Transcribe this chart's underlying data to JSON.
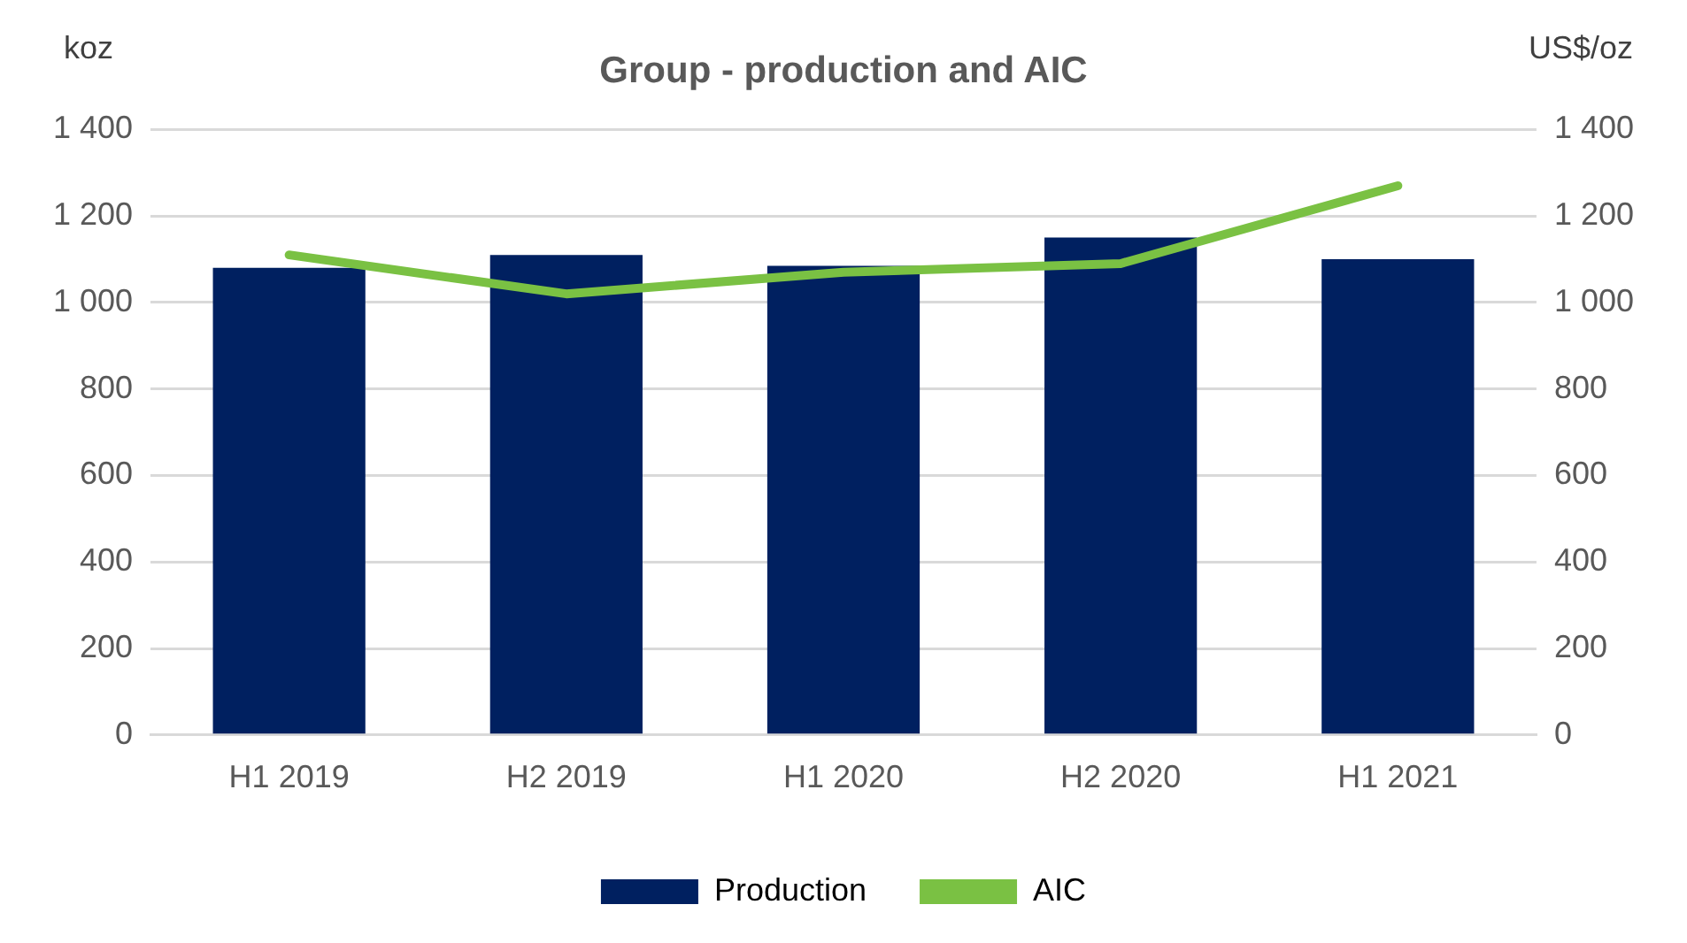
{
  "chart_data": {
    "type": "bar",
    "title": "Group - production and AIC",
    "ylabel": "koz",
    "y2label": "US$/oz",
    "categories": [
      "H1 2019",
      "H2 2019",
      "H1 2020",
      "H2 2020",
      "H1 2021"
    ],
    "series": [
      {
        "name": "Production",
        "color": "#002060",
        "values": [
          1080,
          1110,
          1085,
          1150,
          1100
        ]
      },
      {
        "name": "AIC",
        "type": "line",
        "axis": "y2",
        "color": "#7ac143",
        "values": [
          1110,
          1020,
          1070,
          1090,
          1270
        ]
      }
    ],
    "ylim": [
      0,
      1400
    ],
    "yticks": [
      0,
      200,
      400,
      600,
      800,
      {
        "value": 1000,
        "label": "1 000"
      },
      {
        "value": 1200,
        "label": "1 200"
      },
      {
        "value": 1400,
        "label": "1 400"
      }
    ],
    "y2lim": [
      0,
      1400
    ],
    "y2ticks": [
      0,
      200,
      400,
      600,
      800,
      {
        "value": 1000,
        "label": "1 000"
      },
      {
        "value": 1200,
        "label": "1 200"
      },
      {
        "value": 1400,
        "label": "1 400"
      }
    ],
    "grid": "y",
    "legend": "bottom",
    "marker": "none"
  }
}
